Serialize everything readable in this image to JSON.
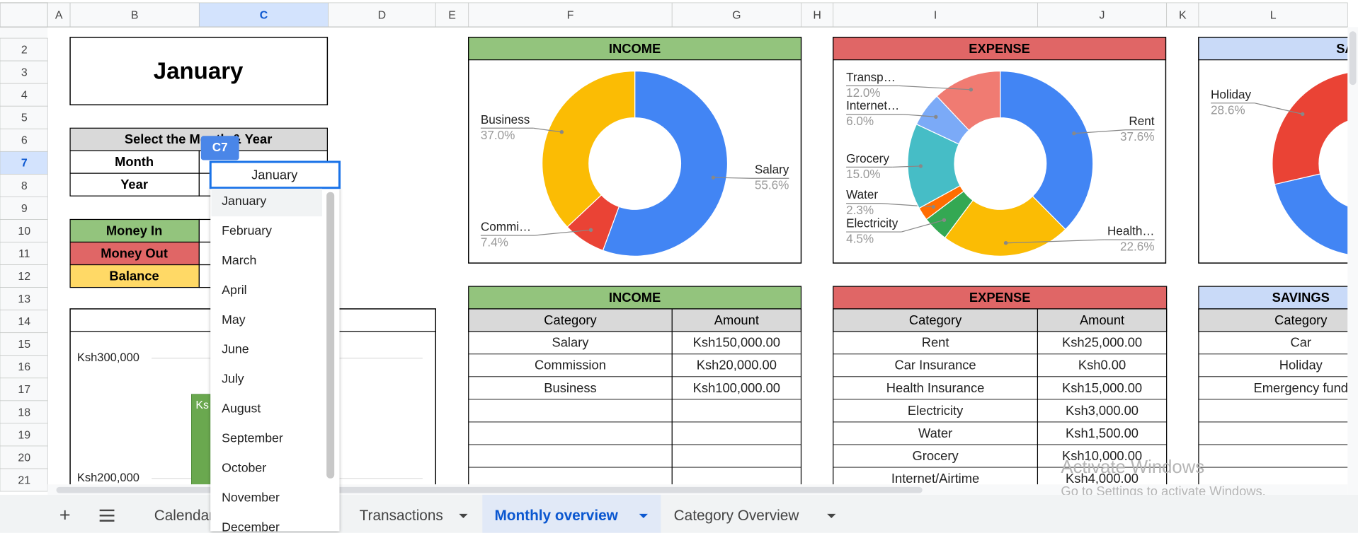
{
  "columns": [
    "A",
    "B",
    "C",
    "D",
    "E",
    "F",
    "G",
    "H",
    "I",
    "J",
    "K",
    "L"
  ],
  "rows": [
    "2",
    "3",
    "4",
    "5",
    "6",
    "7",
    "8",
    "9",
    "10",
    "11",
    "12",
    "13",
    "14",
    "15",
    "16",
    "17",
    "18",
    "19",
    "20",
    "21"
  ],
  "month_title": "January",
  "selector": {
    "header": "Select the Month & Year",
    "labels": [
      "Month",
      "Year"
    ]
  },
  "summary_labels": [
    "Money In",
    "Money Out",
    "Balance"
  ],
  "cell_badge": "C7",
  "dropdown": {
    "value": "January",
    "options": [
      "January",
      "February",
      "March",
      "April",
      "May",
      "June",
      "July",
      "August",
      "September",
      "October",
      "November",
      "December"
    ]
  },
  "bar_chart": {
    "type": "bar",
    "ylim": [
      200000,
      300000
    ],
    "yticks": [
      {
        "value": 300000,
        "label": "Ksh300,000"
      },
      {
        "value": 200000,
        "label": "Ksh200,000"
      }
    ],
    "values": [
      270000
    ],
    "color": "#6aa84f",
    "bar_text": "Ks"
  },
  "income_chart": {
    "type": "pie",
    "title": "INCOME",
    "categories": [
      "Salary",
      "Commi…",
      "Business"
    ],
    "values": [
      55.6,
      7.4,
      37
    ],
    "value_labels": [
      "55.6%",
      "7.4%",
      "37.0%"
    ],
    "colors": [
      "#4285f4",
      "#ea4335",
      "#fbbc04"
    ]
  },
  "expense_chart": {
    "type": "pie",
    "title": "EXPENSE",
    "categories": [
      "Rent",
      "Health…",
      "Electricity",
      "Water",
      "Grocery",
      "Internet…",
      "Transp…"
    ],
    "values": [
      37.6,
      22.6,
      4.5,
      2.3,
      15,
      6,
      12
    ],
    "value_labels": [
      "37.6%",
      "22.6%",
      "4.5%",
      "2.3%",
      "15.0%",
      "6.0%",
      "12.0%"
    ],
    "colors": [
      "#4285f4",
      "#fbbc04",
      "#34a853",
      "#ff6d01",
      "#46bdc6",
      "#7baaf7",
      "#f07b72"
    ]
  },
  "savings_chart": {
    "type": "pie",
    "title": "SAVINGS",
    "categories": [
      "Holiday"
    ],
    "values": [
      28.6
    ],
    "value_labels": [
      "28.6%"
    ],
    "colors": [
      "#ea4335"
    ]
  },
  "income_table": {
    "title": "INCOME",
    "headers": [
      "Category",
      "Amount"
    ],
    "rows": [
      [
        "Salary",
        "Ksh150,000.00"
      ],
      [
        "Commission",
        "Ksh20,000.00"
      ],
      [
        "Business",
        "Ksh100,000.00"
      ]
    ]
  },
  "expense_table": {
    "title": "EXPENSE",
    "headers": [
      "Category",
      "Amount"
    ],
    "rows": [
      [
        "Rent",
        "Ksh25,000.00"
      ],
      [
        "Car Insurance",
        "Ksh0.00"
      ],
      [
        "Health Insurance",
        "Ksh15,000.00"
      ],
      [
        "Electricity",
        "Ksh3,000.00"
      ],
      [
        "Water",
        "Ksh1,500.00"
      ],
      [
        "Grocery",
        "Ksh10,000.00"
      ],
      [
        "Internet/Airtime",
        "Ksh4,000.00"
      ]
    ]
  },
  "savings_table": {
    "title": "SAVINGS",
    "headers": [
      "Category"
    ],
    "rows": [
      [
        "Car"
      ],
      [
        "Holiday"
      ],
      [
        "Emergency fund"
      ]
    ]
  },
  "tabs": [
    "Calendar",
    "Transactions",
    "Monthly overview",
    "Category Overview"
  ],
  "active_tab": 2,
  "watermark": {
    "title": "Activate Windows",
    "subtitle": "Go to Settings to activate Windows."
  }
}
